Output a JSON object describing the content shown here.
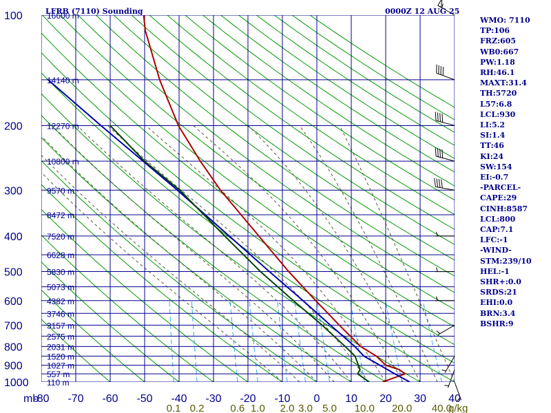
{
  "header": {
    "title": "LFRB (7110) Sounding",
    "time": "0000Z 12 AUG 25"
  },
  "colors": {
    "axis": "#00008b",
    "isobar": "#00008b",
    "isotherm": "#00008b",
    "dry_adiabat": "#009900",
    "moist_adiabat": "#555533",
    "mixing_ratio": "#33aaee",
    "temperature": "#aa0000",
    "parcel": "#0000aa",
    "wetbulb": "#004400",
    "height_labels": "#00008b",
    "mixing_labels": "#5a5a00",
    "indices": "#00008b"
  },
  "indices": [
    "WMO: 7110",
    "TP:106",
    "FRZ:605",
    "WB0:667",
    "PW:1.18",
    "RH:46.1",
    "MAXT:31.4",
    "TH:5720",
    "L57:6.8",
    "LCL:930",
    "LI:5.2",
    "SI:1.4",
    "TT:46",
    "KI:24",
    "SW:154",
    "EI:-0.7",
    "-PARCEL-",
    "CAPE:29",
    "CINH:8587",
    "LCL:800",
    "CAP:7.1",
    "LFC:-1",
    "-WIND-",
    "STM:239/10",
    "HEL:-1",
    "SHR+:0.0",
    "SRDS:21",
    "EHI:0.0",
    "BRN:3.4",
    "BSHR:9"
  ],
  "chart_data": {
    "type": "skew-t",
    "title": "LFRB (7110) Sounding",
    "time": "0000Z 12 AUG 25",
    "y_axis": {
      "unit_label": "mb",
      "scale": "log",
      "pressure_ticks": [
        100,
        200,
        300,
        400,
        500,
        600,
        700,
        800,
        900,
        1000
      ],
      "ylim": [
        1000,
        100
      ]
    },
    "x_axis": {
      "temperature_ticks": [
        -80,
        -70,
        -60,
        -50,
        -40,
        -30,
        -20,
        -10,
        0,
        10,
        20,
        30,
        40
      ],
      "tick_labels": [
        "-80",
        "-70",
        "-60",
        "-50",
        "-40",
        "-30",
        "-20",
        "-10",
        "0",
        "10",
        "20",
        "30",
        "40"
      ],
      "skewed": true
    },
    "height_labels": [
      {
        "p": 100,
        "label": "16600 m"
      },
      {
        "p": 150,
        "label": "14140 m"
      },
      {
        "p": 200,
        "label": "12270 m"
      },
      {
        "p": 250,
        "label": "10800 m"
      },
      {
        "p": 300,
        "label": "9570 m"
      },
      {
        "p": 350,
        "label": "8472 m"
      },
      {
        "p": 400,
        "label": "7520 m"
      },
      {
        "p": 450,
        "label": "6628 m"
      },
      {
        "p": 500,
        "label": "5830 m"
      },
      {
        "p": 550,
        "label": "5073 m"
      },
      {
        "p": 600,
        "label": "4382 m"
      },
      {
        "p": 650,
        "label": "3746 m"
      },
      {
        "p": 700,
        "label": "3157 m"
      },
      {
        "p": 750,
        "label": "2575 m"
      },
      {
        "p": 800,
        "label": "2031 m"
      },
      {
        "p": 850,
        "label": "1520 m"
      },
      {
        "p": 900,
        "label": "1027 m"
      },
      {
        "p": 950,
        "label": "557 m"
      },
      {
        "p": 1000,
        "label": "110 m"
      }
    ],
    "mixing_ratio_labels": [
      {
        "value": 0.1,
        "label": "0.1"
      },
      {
        "value": 0.2,
        "label": "0.2"
      },
      {
        "value": 0.6,
        "label": "0.6"
      },
      {
        "value": 1.0,
        "label": "1.0"
      },
      {
        "value": 2.0,
        "label": "2.0"
      },
      {
        "value": 3.0,
        "label": "3.0"
      },
      {
        "value": 5.0,
        "label": "5.0"
      },
      {
        "value": 10.0,
        "label": "10.0"
      },
      {
        "value": 20.0,
        "label": "20.0"
      },
      {
        "value": 40.0,
        "label": "40.0"
      }
    ],
    "mixing_ratio_unit": "g/kg",
    "series": [
      {
        "key": "temperature",
        "points": [
          {
            "p": 1000,
            "t": 19.1
          },
          {
            "p": 980,
            "t": 21.5
          },
          {
            "p": 950,
            "t": 25.3
          },
          {
            "p": 925,
            "t": 23.4
          },
          {
            "p": 900,
            "t": 19.3
          },
          {
            "p": 850,
            "t": 16.2
          },
          {
            "p": 800,
            "t": 11.2
          },
          {
            "p": 700,
            "t": 4.1
          },
          {
            "p": 600,
            "t": -3.8
          },
          {
            "p": 500,
            "t": -12.9
          },
          {
            "p": 400,
            "t": -23.1
          },
          {
            "p": 300,
            "t": -36.2
          },
          {
            "p": 250,
            "t": -43.3
          },
          {
            "p": 200,
            "t": -51.2
          },
          {
            "p": 150,
            "t": -58.6
          },
          {
            "p": 110,
            "t": -64.9
          },
          {
            "p": 100,
            "t": -66.0
          }
        ]
      },
      {
        "key": "parcel",
        "points": [
          {
            "p": 1000,
            "t": 27.0
          },
          {
            "p": 950,
            "t": 22.3
          },
          {
            "p": 900,
            "t": 17.6
          },
          {
            "p": 850,
            "t": 12.6
          },
          {
            "p": 800,
            "t": 9.5
          },
          {
            "p": 700,
            "t": 1.5
          },
          {
            "p": 600,
            "t": -7.5
          },
          {
            "p": 500,
            "t": -18.5
          },
          {
            "p": 400,
            "t": -31.7
          },
          {
            "p": 300,
            "t": -48.7
          },
          {
            "p": 250,
            "t": -59.9
          },
          {
            "p": 200,
            "t": -73.7
          },
          {
            "p": 150,
            "t": -91.0
          }
        ]
      },
      {
        "key": "wetbulb",
        "points": [
          {
            "p": 1000,
            "t": 15.2
          },
          {
            "p": 950,
            "t": 11.5
          },
          {
            "p": 925,
            "t": 12.0
          },
          {
            "p": 850,
            "t": 10.0
          },
          {
            "p": 800,
            "t": 6.7
          },
          {
            "p": 700,
            "t": -0.9
          },
          {
            "p": 600,
            "t": -10.3
          },
          {
            "p": 500,
            "t": -21.1
          },
          {
            "p": 400,
            "t": -33.0
          },
          {
            "p": 300,
            "t": -48.0
          },
          {
            "p": 250,
            "t": -59.5
          },
          {
            "p": 200,
            "t": -71.0
          }
        ]
      }
    ],
    "wind_barbs": [
      {
        "p": 100,
        "dir": 300,
        "speed": 55
      },
      {
        "p": 150,
        "dir": 290,
        "speed": 40
      },
      {
        "p": 200,
        "dir": 285,
        "speed": 40
      },
      {
        "p": 250,
        "dir": 285,
        "speed": 40
      },
      {
        "p": 300,
        "dir": 280,
        "speed": 40
      },
      {
        "p": 400,
        "dir": 270,
        "speed": 5
      },
      {
        "p": 500,
        "dir": 270,
        "speed": 5
      },
      {
        "p": 600,
        "dir": 270,
        "speed": 5
      },
      {
        "p": 700,
        "dir": 240,
        "speed": 5
      },
      {
        "p": 850,
        "dir": 210,
        "speed": 5
      },
      {
        "p": 925,
        "dir": 200,
        "speed": 5
      },
      {
        "p": 1000,
        "dir": 160,
        "speed": 5
      }
    ]
  }
}
